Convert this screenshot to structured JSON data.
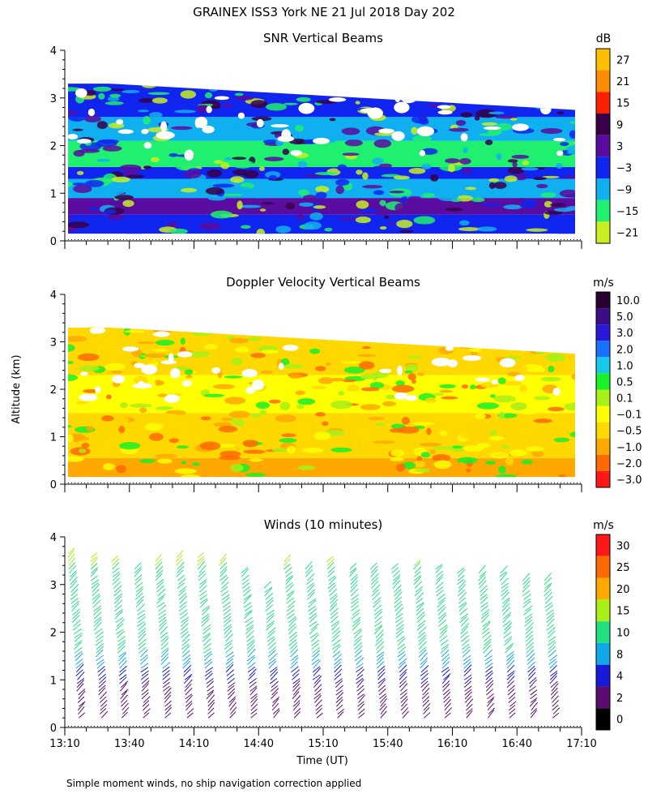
{
  "page": {
    "title": "GRAINEX ISS3 York NE  21 Jul 2018 Day 202",
    "ylabel": "Altitude (km)",
    "xlabel": "Time (UT)",
    "footnote": "Simple moment winds, no ship navigation correction applied"
  },
  "chart_data": [
    {
      "type": "heatmap",
      "title": "SNR Vertical Beams",
      "colorbar_unit": "dB",
      "colorbar_ticks": [
        "27",
        "21",
        "15",
        "9",
        "3",
        "−3",
        "−9",
        "−15",
        "−21"
      ],
      "colorbar_colors": [
        "#ffbf00",
        "#ff8c00",
        "#ff2000",
        "#380048",
        "#5a0ca0",
        "#1026f0",
        "#10b0f0",
        "#20f070",
        "#c8f020"
      ],
      "xlim": [
        "13:10",
        "17:10"
      ],
      "ylim": [
        0,
        4
      ],
      "yticks": [
        "0",
        "1",
        "2",
        "3",
        "4"
      ],
      "top_km": [
        3.35,
        3.3,
        3.25,
        3.2,
        3.15,
        3.1,
        3.05,
        3.0,
        2.95,
        2.9,
        2.85,
        2.8,
        2.75
      ],
      "layers": [
        {
          "base_km": 0.15,
          "top_km": 0.55,
          "color": "#1026f0"
        },
        {
          "base_km": 0.55,
          "top_km": 0.9,
          "color": "#5a0ca0"
        },
        {
          "base_km": 0.9,
          "top_km": 1.3,
          "color": "#10b0f0"
        },
        {
          "base_km": 1.3,
          "top_km": 1.55,
          "color": "#1026f0"
        },
        {
          "base_km": 1.55,
          "top_km": 2.1,
          "color": "#20f070"
        },
        {
          "base_km": 2.1,
          "top_km": 2.6,
          "color": "#10b0f0"
        },
        {
          "base_km": 2.6,
          "top_km": 3.3,
          "color": "#1026f0"
        }
      ]
    },
    {
      "type": "heatmap",
      "title": "Doppler Velocity Vertical Beams",
      "colorbar_unit": "m/s",
      "colorbar_ticks": [
        "10.0",
        "5.0",
        "3.0",
        "2.0",
        "1.0",
        "0.5",
        "0.1",
        "−0.1",
        "−0.5",
        "−1.0",
        "−2.0",
        "−3.0"
      ],
      "colorbar_colors": [
        "#2a0030",
        "#3c0c84",
        "#2818d8",
        "#1870ff",
        "#18c8e8",
        "#18f028",
        "#a8f018",
        "#ffff00",
        "#ffd800",
        "#ffa800",
        "#ff6a00",
        "#ff1818"
      ],
      "xlim": [
        "13:10",
        "17:10"
      ],
      "ylim": [
        0,
        4
      ],
      "yticks": [
        "0",
        "1",
        "2",
        "3",
        "4"
      ],
      "top_km": [
        3.35,
        3.3,
        3.25,
        3.2,
        3.15,
        3.1,
        3.05,
        3.0,
        2.95,
        2.9,
        2.85,
        2.8,
        2.75
      ],
      "layers": [
        {
          "base_km": 0.15,
          "top_km": 0.55,
          "color": "#ffa800"
        },
        {
          "base_km": 0.55,
          "top_km": 1.5,
          "color": "#ffd800"
        },
        {
          "base_km": 1.5,
          "top_km": 2.3,
          "color": "#ffff00"
        },
        {
          "base_km": 2.3,
          "top_km": 3.3,
          "color": "#ffd800"
        }
      ]
    },
    {
      "type": "wind_barbs",
      "title": "Winds (10 minutes)",
      "colorbar_unit": "m/s",
      "colorbar_ticks": [
        "30",
        "25",
        "20",
        "15",
        "10",
        "8",
        "4",
        "2",
        "0"
      ],
      "colorbar_colors": [
        "#ff1818",
        "#ff6a00",
        "#ffa800",
        "#a8f018",
        "#20e080",
        "#10a8e8",
        "#1818d8",
        "#5a0c70",
        "#000000"
      ],
      "xlim": [
        "13:10",
        "17:10"
      ],
      "ylim": [
        0,
        4
      ],
      "yticks": [
        "0",
        "1",
        "2",
        "3",
        "4"
      ],
      "xticks": [
        "13:10",
        "13:40",
        "14:10",
        "14:40",
        "15:10",
        "15:40",
        "16:10",
        "16:40",
        "17:10"
      ],
      "profile_times": [
        "13:20",
        "13:30",
        "13:40",
        "13:50",
        "14:00",
        "14:10",
        "14:20",
        "14:30",
        "14:40",
        "14:50",
        "15:00",
        "15:10",
        "15:20",
        "15:30",
        "15:40",
        "15:50",
        "16:00",
        "16:10",
        "16:20",
        "16:30",
        "16:40",
        "16:50",
        "17:00"
      ],
      "profile_tops_km": [
        3.7,
        3.6,
        3.55,
        3.4,
        3.55,
        3.6,
        3.6,
        3.5,
        3.3,
        3.0,
        3.55,
        3.4,
        3.5,
        3.4,
        3.4,
        3.4,
        3.45,
        3.35,
        3.3,
        3.3,
        3.3,
        3.1,
        3.1
      ]
    }
  ]
}
